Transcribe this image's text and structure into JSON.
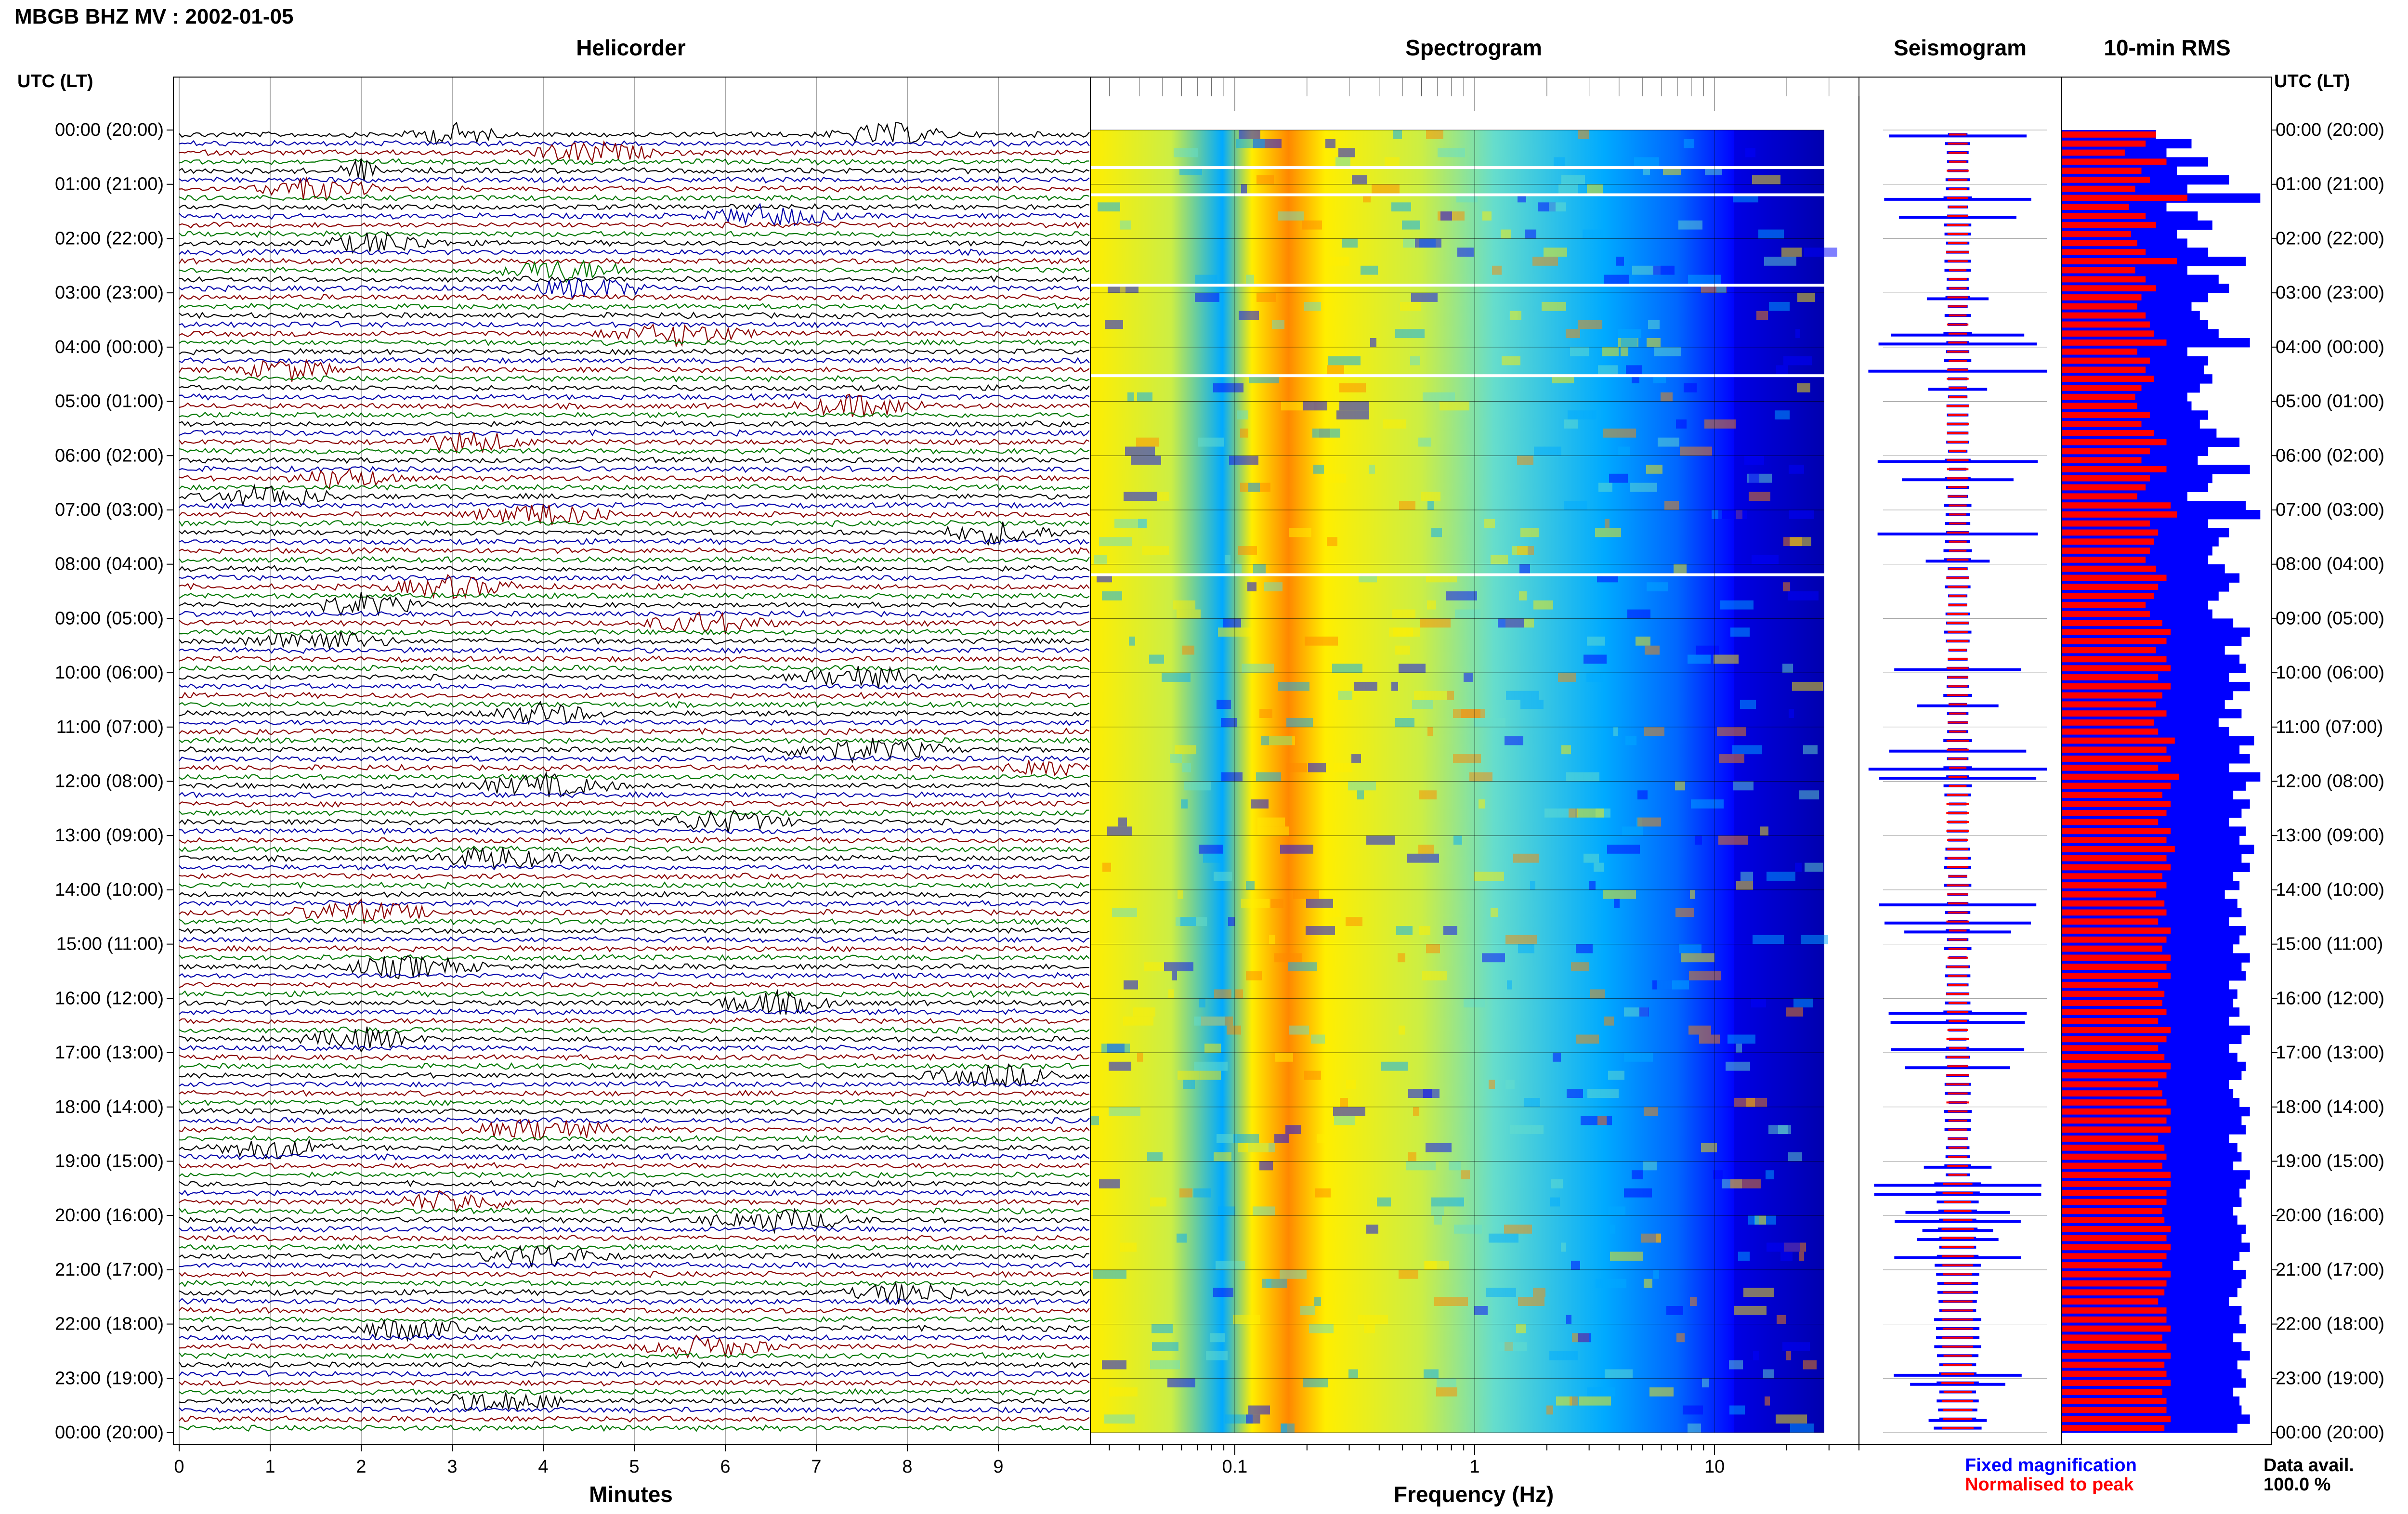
{
  "header": {
    "station_title": "MBGB BHZ MV : 2002-01-05",
    "utc_label": "UTC (LT)"
  },
  "panels": {
    "helicorder": "Helicorder",
    "spectrogram": "Spectrogram",
    "seismogram": "Seismogram",
    "rms": "10-min RMS"
  },
  "hour_labels": [
    "00:00 (20:00)",
    "01:00 (21:00)",
    "02:00 (22:00)",
    "03:00 (23:00)",
    "04:00 (00:00)",
    "05:00 (01:00)",
    "06:00 (02:00)",
    "07:00 (03:00)",
    "08:00 (04:00)",
    "09:00 (05:00)",
    "10:00 (06:00)",
    "11:00 (07:00)",
    "12:00 (08:00)",
    "13:00 (09:00)",
    "14:00 (10:00)",
    "15:00 (11:00)",
    "16:00 (12:00)",
    "17:00 (13:00)",
    "18:00 (14:00)",
    "19:00 (15:00)",
    "20:00 (16:00)",
    "21:00 (17:00)",
    "22:00 (18:00)",
    "23:00 (19:00)",
    "00:00 (20:00)"
  ],
  "axes": {
    "minutes_label": "Minutes",
    "minute_ticks": [
      "0",
      "1",
      "2",
      "3",
      "4",
      "5",
      "6",
      "7",
      "8",
      "9"
    ],
    "frequency_label": "Frequency (Hz)",
    "frequency_ticks": [
      "0.1",
      "1",
      "10"
    ]
  },
  "legend": {
    "fixed": "Fixed magnification",
    "normalised": "Normalised to peak",
    "fixed_color": "#0000ff",
    "normalised_color": "#ff0000"
  },
  "availability": {
    "label": "Data avail.",
    "value": "100.0 %"
  },
  "colors": {
    "trace_cycle": [
      "#000000",
      "#0000aa",
      "#8b0000",
      "#007700"
    ],
    "spectrogram_scale": [
      "#00008b",
      "#0000ff",
      "#00aaff",
      "#66ddcc",
      "#ccee44",
      "#ffee00",
      "#ff8800",
      "#ff0000"
    ]
  },
  "chart_data": [
    {
      "type": "line",
      "panel": "Helicorder",
      "xlabel": "Minutes",
      "xlim": [
        0,
        10
      ],
      "rows_per_hour": 6,
      "hours": 24,
      "note_series": "seismic velocity traces, one 10-minute line per row"
    },
    {
      "type": "heatmap",
      "panel": "Spectrogram",
      "xlabel": "Frequency (Hz)",
      "xscale": "log",
      "xlim": [
        0.025,
        40
      ],
      "peak_frequency_hz": 0.22,
      "gap_rows_utc": [
        "00:40",
        "01:10",
        "02:50",
        "04:30",
        "08:10"
      ]
    },
    {
      "type": "area",
      "panel": "Seismogram",
      "series": [
        {
          "name": "Fixed magnification"
        },
        {
          "name": "Normalised to peak"
        }
      ]
    },
    {
      "type": "bar",
      "panel": "10-min RMS",
      "orientation": "horizontal",
      "fixed_magnification_relative": [
        0.45,
        0.62,
        0.5,
        0.7,
        0.55,
        0.8,
        0.6,
        0.95,
        0.5,
        0.65,
        0.72,
        0.55,
        0.6,
        0.7,
        0.88,
        0.6,
        0.75,
        0.8,
        0.7,
        0.62,
        0.66,
        0.7,
        0.75,
        0.9,
        0.6,
        0.7,
        0.68,
        0.72,
        0.66,
        0.6,
        0.62,
        0.7,
        0.66,
        0.74,
        0.85,
        0.7,
        0.65,
        0.9,
        0.72,
        0.7,
        0.6,
        0.88,
        0.95,
        0.7,
        0.8,
        0.75,
        0.72,
        0.7,
        0.78,
        0.85,
        0.8,
        0.75,
        0.7,
        0.72,
        0.82,
        0.9,
        0.86,
        0.78,
        0.85,
        0.88,
        0.8,
        0.9,
        0.82,
        0.78,
        0.86,
        0.75,
        0.8,
        0.92,
        0.85,
        0.9,
        0.8,
        0.95,
        0.88,
        0.82,
        0.9,
        0.86,
        0.8,
        0.88,
        0.85,
        0.92,
        0.86,
        0.9,
        0.82,
        0.85,
        0.78,
        0.84,
        0.86,
        0.8,
        0.88,
        0.85,
        0.82,
        0.9,
        0.86,
        0.88,
        0.8,
        0.84,
        0.82,
        0.85,
        0.8,
        0.9,
        0.86,
        0.8,
        0.84,
        0.88,
        0.86,
        0.8,
        0.82,
        0.85,
        0.9,
        0.86,
        0.88,
        0.8,
        0.84,
        0.86,
        0.82,
        0.9,
        0.88,
        0.85,
        0.86,
        0.82,
        0.84,
        0.88,
        0.86,
        0.9,
        0.85,
        0.82,
        0.88,
        0.86,
        0.84,
        0.8,
        0.86,
        0.85,
        0.88,
        0.82,
        0.86,
        0.9,
        0.84,
        0.86,
        0.88,
        0.82,
        0.85,
        0.86,
        0.9,
        0.84
      ],
      "normalised_relative": [
        0.45,
        0.4,
        0.3,
        0.5,
        0.38,
        0.42,
        0.35,
        0.6,
        0.32,
        0.4,
        0.45,
        0.33,
        0.36,
        0.4,
        0.55,
        0.35,
        0.4,
        0.45,
        0.38,
        0.36,
        0.4,
        0.42,
        0.44,
        0.5,
        0.36,
        0.42,
        0.4,
        0.44,
        0.38,
        0.35,
        0.36,
        0.42,
        0.38,
        0.44,
        0.5,
        0.42,
        0.38,
        0.5,
        0.42,
        0.4,
        0.36,
        0.52,
        0.55,
        0.42,
        0.46,
        0.44,
        0.42,
        0.4,
        0.45,
        0.5,
        0.46,
        0.44,
        0.4,
        0.42,
        0.48,
        0.52,
        0.5,
        0.45,
        0.5,
        0.52,
        0.46,
        0.52,
        0.48,
        0.45,
        0.5,
        0.44,
        0.46,
        0.54,
        0.5,
        0.52,
        0.46,
        0.56,
        0.52,
        0.48,
        0.52,
        0.5,
        0.46,
        0.52,
        0.5,
        0.54,
        0.5,
        0.52,
        0.48,
        0.5,
        0.45,
        0.49,
        0.5,
        0.46,
        0.52,
        0.5,
        0.48,
        0.52,
        0.5,
        0.52,
        0.46,
        0.49,
        0.48,
        0.5,
        0.46,
        0.52,
        0.5,
        0.46,
        0.49,
        0.52,
        0.5,
        0.46,
        0.48,
        0.5,
        0.52,
        0.5,
        0.52,
        0.46,
        0.49,
        0.5,
        0.48,
        0.52,
        0.52,
        0.5,
        0.5,
        0.48,
        0.49,
        0.52,
        0.5,
        0.52,
        0.5,
        0.48,
        0.52,
        0.5,
        0.49,
        0.46,
        0.5,
        0.5,
        0.52,
        0.48,
        0.5,
        0.52,
        0.49,
        0.5,
        0.52,
        0.48,
        0.5,
        0.5,
        0.52,
        0.49
      ]
    }
  ]
}
